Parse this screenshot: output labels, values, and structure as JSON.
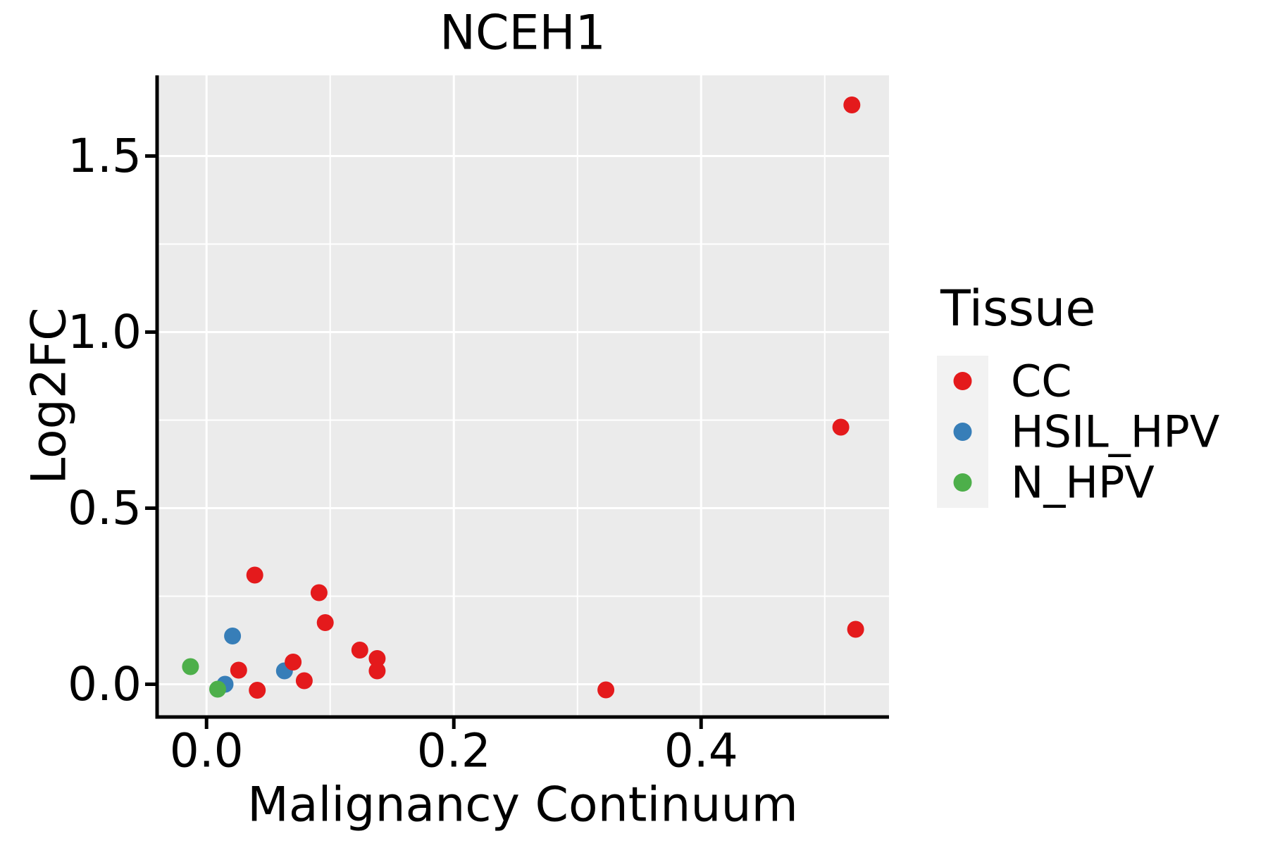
{
  "figure": {
    "title": "NCEH1"
  },
  "chart_data": {
    "type": "scatter",
    "title": "NCEH1",
    "xlabel": "Malignancy Continuum",
    "ylabel": "Log2FC",
    "xlim": [
      -0.04,
      0.552
    ],
    "ylim": [
      -0.093,
      1.729
    ],
    "grid": true,
    "legend_position": "right",
    "panel_background": "#EBEBEB",
    "grid_color": "#FFFFFF",
    "axis_color": "#000000",
    "x_ticks": {
      "major": [
        0.0,
        0.2,
        0.4
      ],
      "labels": [
        "0.0",
        "0.2",
        "0.4"
      ],
      "minor": [
        0.1,
        0.3,
        0.5
      ]
    },
    "y_ticks": {
      "major": [
        0.0,
        0.5,
        1.0,
        1.5
      ],
      "labels": [
        "0.0",
        "0.5",
        "1.0",
        "1.5"
      ],
      "minor": [
        0.25,
        0.75,
        1.25
      ]
    },
    "series": [
      {
        "name": "HSIL_HPV",
        "color": "#377EB8",
        "points": [
          [
            0.015,
            0.0
          ],
          [
            0.021,
            0.137
          ],
          [
            0.063,
            0.038
          ]
        ]
      },
      {
        "name": "CC",
        "color": "#E41A1C",
        "points": [
          [
            0.026,
            0.04
          ],
          [
            0.039,
            0.31
          ],
          [
            0.041,
            -0.017
          ],
          [
            0.07,
            0.063
          ],
          [
            0.079,
            0.01
          ],
          [
            0.091,
            0.26
          ],
          [
            0.096,
            0.175
          ],
          [
            0.124,
            0.097
          ],
          [
            0.138,
            0.073
          ],
          [
            0.138,
            0.038
          ],
          [
            0.323,
            -0.016
          ],
          [
            0.513,
            0.73
          ],
          [
            0.522,
            1.645
          ],
          [
            0.525,
            0.156
          ]
        ]
      },
      {
        "name": "N_HPV",
        "color": "#4DAF4A",
        "points": [
          [
            -0.013,
            0.05
          ],
          [
            0.009,
            -0.014
          ]
        ]
      }
    ],
    "legend": {
      "title": "Tissue",
      "key_background": "#F2F2F2",
      "order": [
        "CC",
        "HSIL_HPV",
        "N_HPV"
      ]
    }
  }
}
